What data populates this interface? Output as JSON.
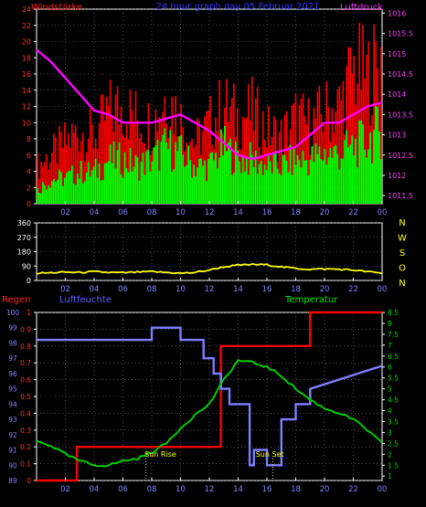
{
  "chart_data": [
    {
      "type": "bar",
      "title": "24 hour graph day  05 Februar 2021",
      "left_axis_label": "Windstärke",
      "right_axis_label": "Luftdruck",
      "x_ticks": [
        "02",
        "04",
        "06",
        "08",
        "10",
        "12",
        "14",
        "16",
        "18",
        "20",
        "22",
        "00"
      ],
      "y_left_ticks": [
        "0",
        "2",
        "4",
        "6",
        "8",
        "10",
        "12",
        "14",
        "16",
        "18",
        "20",
        "22",
        "24"
      ],
      "y_left_range": [
        0,
        24
      ],
      "y_right_ticks": [
        "1011.5",
        "1012",
        "1012.5",
        "1013",
        "1013.5",
        "1014",
        "1014.5",
        "1015",
        "1015.5",
        "1016"
      ],
      "y_right_range": [
        1011.3,
        1016.1
      ],
      "grid": true,
      "series": [
        {
          "kind": "gust_bars",
          "color": "#ff0000",
          "hours": [
            0,
            1,
            2,
            3,
            4,
            5,
            6,
            7,
            8,
            9,
            10,
            11,
            12,
            13,
            14,
            15,
            16,
            17,
            18,
            19,
            20,
            21,
            22,
            23,
            24
          ],
          "values": [
            6,
            8,
            10,
            12,
            11,
            15,
            16,
            14,
            13,
            18,
            14,
            10,
            13,
            16,
            14,
            15,
            12,
            11,
            14,
            13,
            15,
            16,
            22,
            21,
            24
          ]
        },
        {
          "kind": "wind_bars",
          "color": "#00ff00",
          "hours": [
            0,
            1,
            2,
            3,
            4,
            5,
            6,
            7,
            8,
            9,
            10,
            11,
            12,
            13,
            14,
            15,
            16,
            17,
            18,
            19,
            20,
            21,
            22,
            23,
            24
          ],
          "values": [
            2,
            4,
            4,
            5,
            5,
            7,
            7,
            6,
            7,
            9,
            8,
            6,
            6,
            9,
            7,
            7,
            6,
            6,
            7,
            7,
            8,
            8,
            9,
            10,
            12
          ]
        },
        {
          "kind": "pressure_line",
          "color": "#ff00ff",
          "hours": [
            0,
            1,
            2,
            3,
            4,
            5,
            6,
            7,
            8,
            9,
            10,
            11,
            12,
            13,
            14,
            15,
            16,
            17,
            18,
            19,
            20,
            21,
            22,
            23,
            24
          ],
          "values": [
            1015.1,
            1014.8,
            1014.4,
            1014.0,
            1013.6,
            1013.5,
            1013.3,
            1013.3,
            1013.3,
            1013.4,
            1013.5,
            1013.3,
            1013.1,
            1012.8,
            1012.5,
            1012.4,
            1012.5,
            1012.6,
            1012.7,
            1013.0,
            1013.3,
            1013.3,
            1013.5,
            1013.7,
            1013.8
          ]
        }
      ]
    },
    {
      "type": "line",
      "right_axis_letters": [
        "N",
        "W",
        "S",
        "O",
        "N"
      ],
      "x_ticks": [
        "02",
        "04",
        "06",
        "08",
        "10",
        "12",
        "14",
        "16",
        "18",
        "20",
        "22",
        "00"
      ],
      "y_ticks": [
        "0",
        "90",
        "180",
        "270",
        "360"
      ],
      "y_range": [
        0,
        360
      ],
      "grid": true,
      "series": [
        {
          "kind": "wind_direction",
          "color": "#ffff00",
          "hours": [
            0,
            1,
            2,
            3,
            4,
            5,
            6,
            7,
            8,
            9,
            10,
            11,
            12,
            13,
            14,
            15,
            16,
            17,
            18,
            19,
            20,
            21,
            22,
            23,
            24
          ],
          "values": [
            45,
            48,
            52,
            50,
            55,
            50,
            48,
            52,
            55,
            50,
            45,
            50,
            65,
            85,
            95,
            100,
            98,
            85,
            75,
            70,
            72,
            70,
            65,
            55,
            45
          ]
        }
      ]
    },
    {
      "type": "line",
      "left_title": "Regen",
      "humidity_title": "Luftfeuchte",
      "temperature_title": "Temperatur",
      "x_ticks": [
        "02",
        "04",
        "06",
        "08",
        "10",
        "12",
        "14",
        "16",
        "18",
        "20",
        "22",
        "00"
      ],
      "rain_ticks": [
        "0",
        "0.1",
        "0.2",
        "0.3",
        "0.4",
        "0.5",
        "0.6",
        "0.7",
        "0.8",
        "0.9",
        "1"
      ],
      "rain_range": [
        0,
        1
      ],
      "humidity_ticks": [
        "89",
        "90",
        "91",
        "92",
        "93",
        "94",
        "95",
        "96",
        "97",
        "98",
        "99",
        "100"
      ],
      "humidity_range": [
        89,
        100
      ],
      "temperature_ticks": [
        "1",
        "1.5",
        "2",
        "2.5",
        "3",
        "3.5",
        "4",
        "4.5",
        "5",
        "5.5",
        "6",
        "6.5",
        "7",
        "7.5",
        "8",
        "8.5"
      ],
      "temperature_range": [
        0.8,
        8.5
      ],
      "annotations": [
        "Sun Rise",
        "Sun Set"
      ],
      "grid": true,
      "series": [
        {
          "kind": "rain_cumulative",
          "color": "#ff0000",
          "hours": [
            0,
            2.8,
            2.8,
            12.8,
            12.8,
            19.0,
            19.0,
            24
          ],
          "values": [
            0,
            0,
            0.2,
            0.2,
            0.8,
            0.8,
            1.0,
            1.0
          ]
        },
        {
          "kind": "humidity",
          "color": "#7f7fff",
          "hours": [
            0,
            8,
            8,
            10,
            10,
            11.6,
            11.6,
            12.3,
            12.3,
            12.8,
            12.8,
            13.4,
            13.4,
            14.8,
            14.8,
            15.1,
            15.1,
            16.0,
            16.0,
            17.0,
            17.0,
            18.0,
            18.0,
            19.0,
            19.0,
            24
          ],
          "values": [
            98.2,
            98.2,
            99.0,
            99.0,
            98.2,
            98.2,
            97.0,
            97.0,
            96.0,
            96.0,
            95.0,
            95.0,
            94.0,
            94.0,
            90.0,
            90.0,
            91.0,
            91.0,
            90.0,
            90.0,
            93.0,
            93.0,
            94.0,
            94.0,
            95.0,
            96.5
          ]
        },
        {
          "kind": "temperature",
          "color": "#00cc00",
          "hours": [
            0,
            1,
            2,
            3,
            4,
            5,
            6,
            7,
            8,
            9,
            10,
            11,
            12,
            13,
            14,
            15,
            16,
            17,
            18,
            19,
            20,
            21,
            22,
            23,
            24
          ],
          "values": [
            2.6,
            2.4,
            2.0,
            1.7,
            1.5,
            1.5,
            1.7,
            1.8,
            2.1,
            2.5,
            3.2,
            3.8,
            4.3,
            5.4,
            6.3,
            6.2,
            6.0,
            5.6,
            5.0,
            4.5,
            4.1,
            3.9,
            3.6,
            3.1,
            2.5
          ]
        }
      ]
    }
  ]
}
